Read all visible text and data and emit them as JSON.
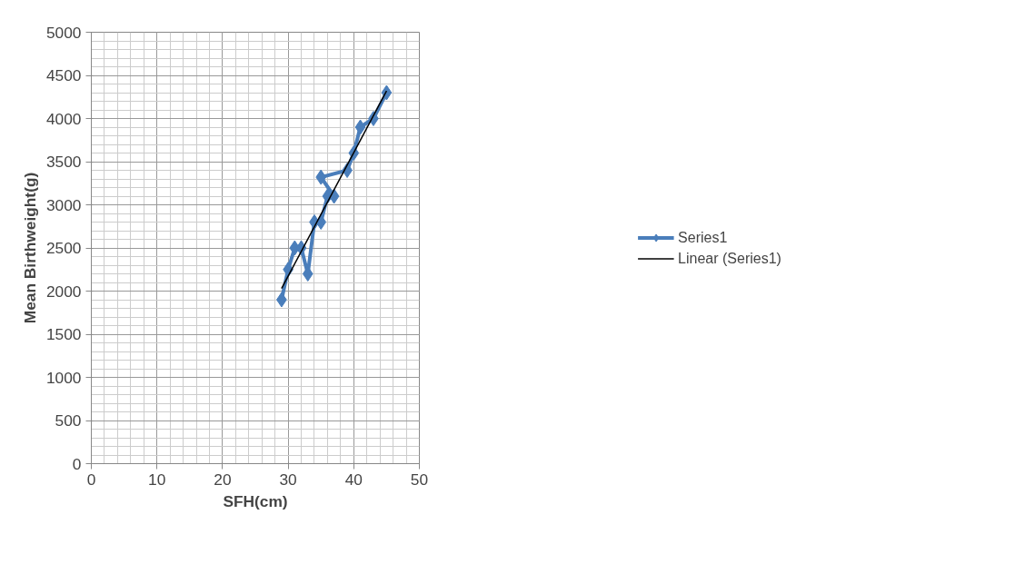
{
  "chart_data": {
    "type": "line",
    "xlabel": "SFH(cm)",
    "ylabel": "Mean Birthweight(g)",
    "xlim": [
      0,
      50
    ],
    "xticks": [
      0,
      10,
      20,
      30,
      40,
      50
    ],
    "ylim": [
      0,
      5000
    ],
    "yticks": [
      0,
      500,
      1000,
      1500,
      2000,
      2500,
      3000,
      3500,
      4000,
      4500,
      5000
    ],
    "grid": true,
    "legend": "right",
    "marker": "diamond",
    "line_style": "solid",
    "series": [
      {
        "name": "Series1",
        "color": "#4a7ebb",
        "x": [
          29,
          30,
          31,
          32,
          33,
          34,
          35,
          36,
          37,
          35,
          39,
          40,
          41,
          43,
          45
        ],
        "values": [
          1900,
          2250,
          2500,
          2500,
          2200,
          2800,
          2800,
          3100,
          3100,
          3320,
          3400,
          3600,
          3900,
          4000,
          4300
        ]
      },
      {
        "name": "Linear (Series1)",
        "color": "#000000",
        "marker": "none",
        "x": [
          29,
          45
        ],
        "values": [
          2030,
          4320
        ]
      }
    ]
  }
}
